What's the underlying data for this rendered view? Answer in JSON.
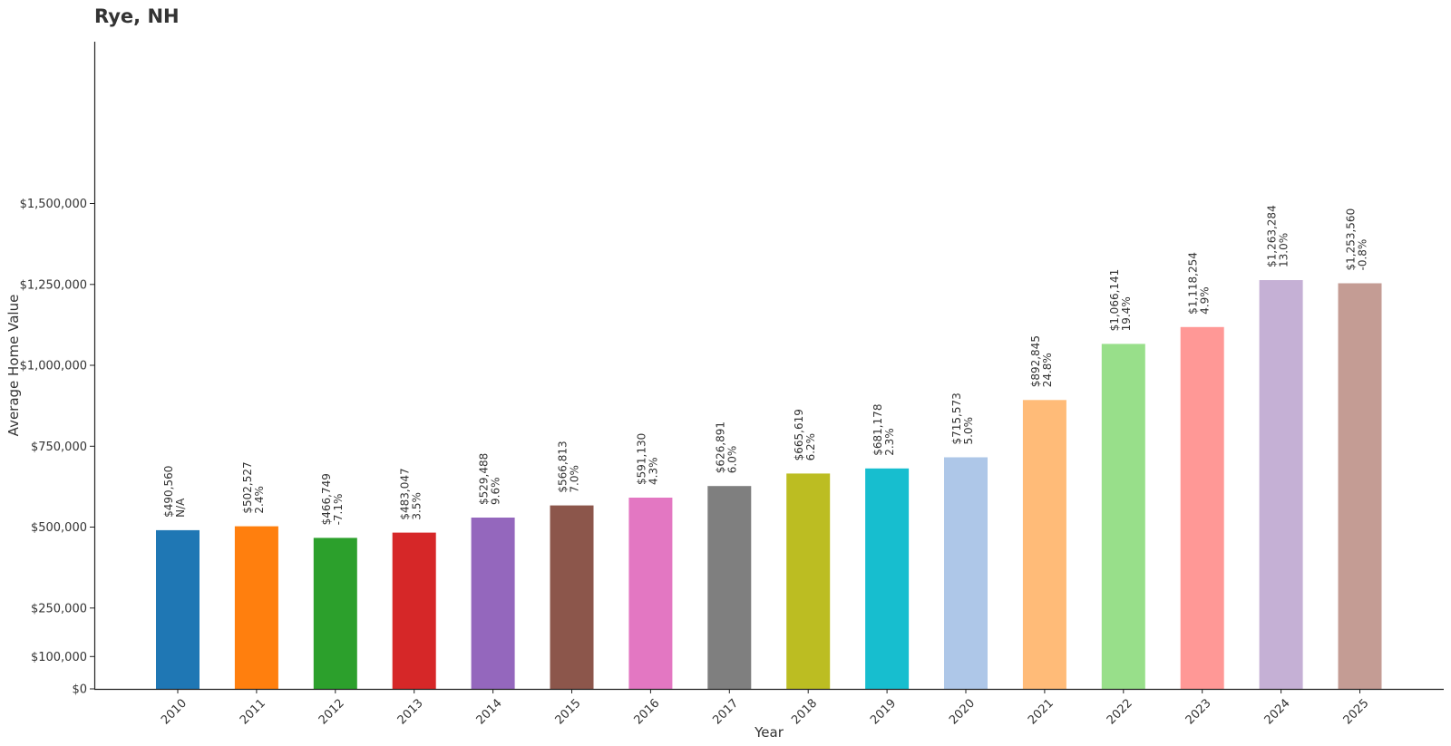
{
  "chart_data": {
    "type": "bar",
    "title": "Rye, NH",
    "xlabel": "Year",
    "ylabel": "Average Home Value",
    "ylim": [
      0,
      2000000
    ],
    "yticks": [
      0,
      100000,
      250000,
      500000,
      750000,
      1000000,
      1250000,
      1500000
    ],
    "ytick_labels": [
      "$0",
      "$100,000",
      "$250,000",
      "$500,000",
      "$750,000",
      "$1,000,000",
      "$1,250,000",
      "$1,500,000"
    ],
    "grid": false,
    "legend": "none",
    "categories": [
      "2010",
      "2011",
      "2012",
      "2013",
      "2014",
      "2015",
      "2016",
      "2017",
      "2018",
      "2019",
      "2020",
      "2021",
      "2022",
      "2023",
      "2024",
      "2025"
    ],
    "values": [
      490560,
      502527,
      466749,
      483047,
      529488,
      566813,
      591130,
      626891,
      665619,
      681178,
      715573,
      892845,
      1066141,
      1118254,
      1263284,
      1253560
    ],
    "value_labels": [
      "$490,560",
      "$502,527",
      "$466,749",
      "$483,047",
      "$529,488",
      "$566,813",
      "$591,130",
      "$626,891",
      "$665,619",
      "$681,178",
      "$715,573",
      "$892,845",
      "$1,066,141",
      "$1,118,254",
      "$1,263,284",
      "$1,253,560"
    ],
    "change_labels": [
      "N/A",
      "2.4%",
      "-7.1%",
      "3.5%",
      "9.6%",
      "7.0%",
      "4.3%",
      "6.0%",
      "6.2%",
      "2.3%",
      "5.0%",
      "24.8%",
      "19.4%",
      "4.9%",
      "13.0%",
      "-0.8%"
    ],
    "colors": [
      "#1f77b4",
      "#ff7f0e",
      "#2ca02c",
      "#d62728",
      "#9467bd",
      "#8c564b",
      "#e377c2",
      "#7f7f7f",
      "#bcbd22",
      "#17becf",
      "#aec7e8",
      "#ffbb78",
      "#98df8a",
      "#ff9896",
      "#c5b0d5",
      "#c49c94"
    ]
  }
}
